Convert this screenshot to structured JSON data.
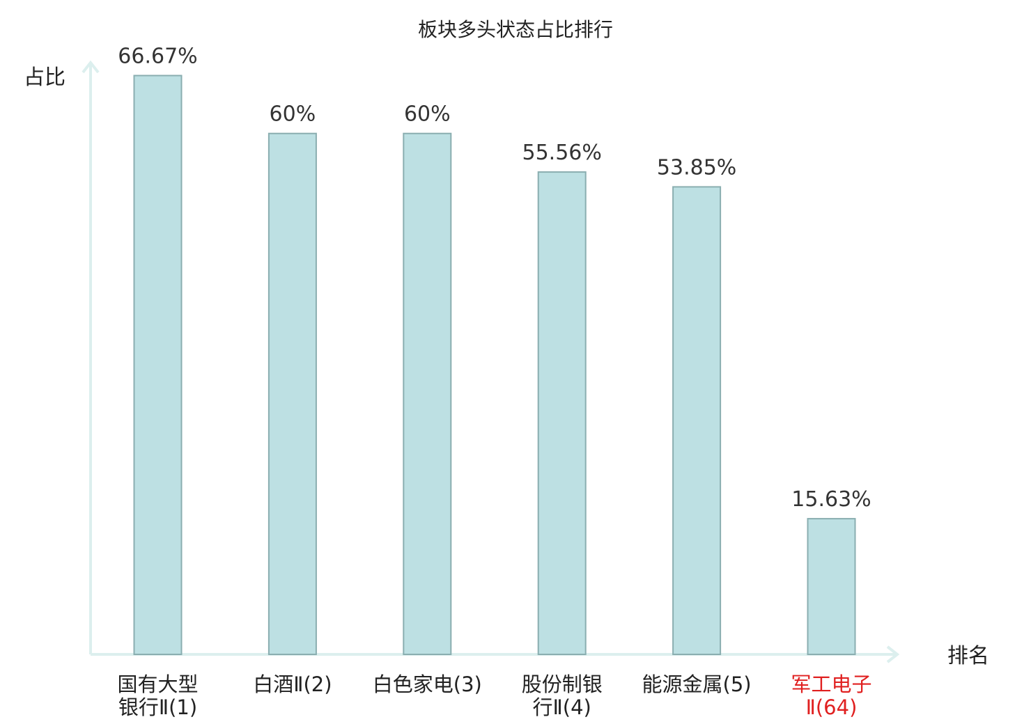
{
  "chart_data": {
    "type": "bar",
    "title": "板块多头状态占比排行",
    "ylabel": "占比",
    "xlabel": "排名",
    "categories": [
      [
        "国有大型",
        "银行Ⅱ(1)"
      ],
      [
        "白酒Ⅱ(2)"
      ],
      [
        "白色家电(3)"
      ],
      [
        "股份制银",
        "行Ⅱ(4)"
      ],
      [
        "能源金属(5)"
      ],
      [
        "军工电子",
        "Ⅱ(64)"
      ]
    ],
    "values": [
      66.67,
      60,
      60,
      55.56,
      53.85,
      15.63
    ],
    "value_labels": [
      "66.67%",
      "60%",
      "60%",
      "55.56%",
      "53.85%",
      "15.63%"
    ],
    "highlight_index": 5,
    "ylim": [
      0,
      70
    ],
    "grid": false,
    "legend": "none",
    "colors": {
      "bar_fill": "#bde0e3",
      "bar_stroke": "#8aaeb0",
      "axis": "#dcefee",
      "highlight": "#e02020",
      "text": "#222222"
    }
  }
}
